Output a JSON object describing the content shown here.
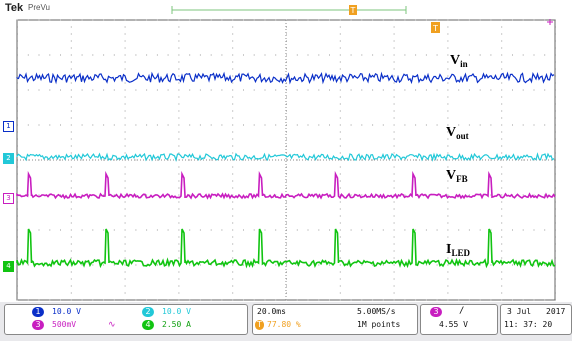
{
  "header": {
    "brand": "Tek",
    "mode": "PreVu"
  },
  "colors": {
    "ch1": "#0a2fc8",
    "ch2": "#22c8d8",
    "ch3": "#c81ec0",
    "ch4": "#11c411",
    "trigger": "#f0a020"
  },
  "icons": {
    "trigger": "trigger-t-icon",
    "math": "math-wave-icon",
    "edge": "rising-edge-icon"
  },
  "labels": {
    "vin": "V",
    "vin_sub": "in",
    "vout": "V",
    "vout_sub": "out",
    "vfb": "V",
    "vfb_sub": "FB",
    "iled": "I",
    "iled_sub": "LED"
  },
  "markers": {
    "ch1": "1",
    "ch2": "2",
    "ch3": "3",
    "ch4": "4"
  },
  "channels": [
    {
      "num": "1",
      "scale": "10.0 V"
    },
    {
      "num": "2",
      "scale": "10.0 V"
    },
    {
      "num": "3",
      "scale": "500mV"
    },
    {
      "num": "4",
      "scale": "2.50 A"
    }
  ],
  "timebase": {
    "time_div": "20.0ms",
    "sample_rate": "5.00MS/s",
    "trigger_pos": "77.80 %",
    "record": "1M points"
  },
  "trigger": {
    "channel": "3",
    "slope": "/",
    "level": "4.55 V"
  },
  "datetime": {
    "date": "3 Jul",
    "year": "2017",
    "time": "11: 37: 20"
  }
}
